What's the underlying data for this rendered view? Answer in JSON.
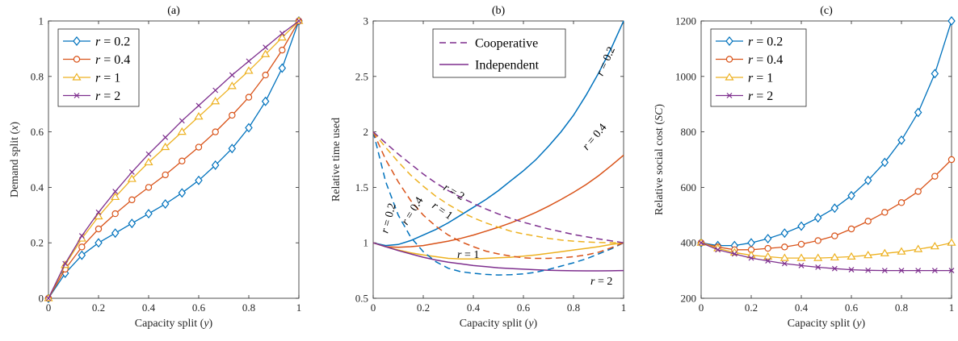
{
  "chart_data": [
    {
      "type": "line",
      "title": "(a)",
      "xlabel": "Capacity split (y)",
      "ylabel": "Demand split (x)",
      "xlim": [
        0,
        1
      ],
      "ylim": [
        0,
        1
      ],
      "xticks": [
        "0",
        "0.2",
        "0.4",
        "0.6",
        "0.8",
        "1"
      ],
      "yticks": [
        "0",
        "0.2",
        "0.4",
        "0.6",
        "0.8",
        "1"
      ],
      "grid": false,
      "legend": "top-left",
      "x": [
        0,
        0.0667,
        0.1333,
        0.2,
        0.2667,
        0.3333,
        0.4,
        0.4667,
        0.5333,
        0.6,
        0.6667,
        0.7333,
        0.8,
        0.8667,
        0.9333,
        1
      ],
      "series": [
        {
          "name": "r = 0.2",
          "color": "#0072BD",
          "marker": "diamond",
          "values": [
            0,
            0.09,
            0.155,
            0.2,
            0.235,
            0.27,
            0.305,
            0.34,
            0.38,
            0.425,
            0.48,
            0.54,
            0.615,
            0.71,
            0.83,
            1
          ]
        },
        {
          "name": "r = 0.4",
          "color": "#D95319",
          "marker": "circle",
          "values": [
            0,
            0.105,
            0.185,
            0.25,
            0.305,
            0.355,
            0.4,
            0.445,
            0.495,
            0.545,
            0.6,
            0.66,
            0.725,
            0.805,
            0.895,
            1
          ]
        },
        {
          "name": "r = 1",
          "color": "#EDB120",
          "marker": "triangle",
          "values": [
            0,
            0.12,
            0.215,
            0.295,
            0.365,
            0.43,
            0.49,
            0.545,
            0.6,
            0.655,
            0.71,
            0.765,
            0.82,
            0.88,
            0.94,
            1
          ]
        },
        {
          "name": "r = 2",
          "color": "#7E2F8E",
          "marker": "x",
          "values": [
            0,
            0.125,
            0.225,
            0.31,
            0.385,
            0.455,
            0.52,
            0.58,
            0.64,
            0.695,
            0.75,
            0.805,
            0.855,
            0.905,
            0.955,
            1
          ]
        }
      ]
    },
    {
      "type": "line",
      "title": "(b)",
      "xlabel": "Capacity split (y)",
      "ylabel": "Relative time used",
      "xlim": [
        0,
        1
      ],
      "ylim": [
        0.5,
        3
      ],
      "xticks": [
        "0",
        "0.2",
        "0.4",
        "0.6",
        "0.8",
        "1"
      ],
      "yticks": [
        "0.5",
        "1",
        "1.5",
        "2",
        "2.5",
        "3"
      ],
      "grid": false,
      "legend": "top-center",
      "legend_entries": [
        {
          "name": "Cooperative",
          "style": "dashed",
          "color": "#7E2F8E"
        },
        {
          "name": "Independent",
          "style": "solid",
          "color": "#7E2F8E"
        }
      ],
      "x": [
        0,
        0.05,
        0.1,
        0.15,
        0.2,
        0.25,
        0.3,
        0.35,
        0.4,
        0.45,
        0.5,
        0.55,
        0.6,
        0.65,
        0.7,
        0.75,
        0.8,
        0.85,
        0.9,
        0.95,
        1
      ],
      "series": [
        {
          "name": "r = 0.2 Independent",
          "color": "#0072BD",
          "style": "solid",
          "values": [
            1,
            0.975,
            0.985,
            1.02,
            1.07,
            1.12,
            1.18,
            1.25,
            1.32,
            1.39,
            1.47,
            1.56,
            1.65,
            1.75,
            1.87,
            2.0,
            2.15,
            2.33,
            2.53,
            2.75,
            3.0
          ]
        },
        {
          "name": "r = 0.4 Independent",
          "color": "#D95319",
          "style": "solid",
          "values": [
            1,
            0.965,
            0.96,
            0.965,
            0.975,
            0.995,
            1.015,
            1.04,
            1.07,
            1.105,
            1.14,
            1.18,
            1.225,
            1.275,
            1.33,
            1.39,
            1.455,
            1.525,
            1.605,
            1.695,
            1.79
          ]
        },
        {
          "name": "r = 1 Independent",
          "color": "#EDB120",
          "style": "solid",
          "values": [
            1,
            0.965,
            0.935,
            0.91,
            0.89,
            0.875,
            0.86,
            0.855,
            0.855,
            0.86,
            0.865,
            0.87,
            0.88,
            0.89,
            0.905,
            0.92,
            0.935,
            0.95,
            0.965,
            0.985,
            1.0
          ]
        },
        {
          "name": "r = 2 Independent",
          "color": "#7E2F8E",
          "style": "solid",
          "values": [
            1,
            0.965,
            0.93,
            0.9,
            0.87,
            0.845,
            0.825,
            0.81,
            0.795,
            0.785,
            0.775,
            0.768,
            0.762,
            0.757,
            0.753,
            0.75,
            0.748,
            0.747,
            0.747,
            0.748,
            0.75
          ]
        },
        {
          "name": "r = 0.2 Cooperative",
          "color": "#0072BD",
          "style": "dashed",
          "values": [
            2,
            1.55,
            1.25,
            1.05,
            0.92,
            0.83,
            0.77,
            0.74,
            0.725,
            0.715,
            0.71,
            0.712,
            0.72,
            0.735,
            0.76,
            0.79,
            0.82,
            0.855,
            0.9,
            0.945,
            1.0
          ]
        },
        {
          "name": "r = 0.4 Cooperative",
          "color": "#D95319",
          "style": "dashed",
          "values": [
            2,
            1.75,
            1.55,
            1.38,
            1.25,
            1.15,
            1.07,
            1.01,
            0.965,
            0.925,
            0.9,
            0.88,
            0.865,
            0.86,
            0.86,
            0.865,
            0.875,
            0.89,
            0.915,
            0.955,
            1.0
          ]
        },
        {
          "name": "r = 1 Cooperative",
          "color": "#EDB120",
          "style": "dashed",
          "values": [
            2,
            1.86,
            1.73,
            1.61,
            1.51,
            1.42,
            1.345,
            1.28,
            1.225,
            1.18,
            1.14,
            1.105,
            1.08,
            1.06,
            1.04,
            1.025,
            1.015,
            1.008,
            1.003,
            1.001,
            1.0
          ]
        },
        {
          "name": "r = 2 Cooperative",
          "color": "#7E2F8E",
          "style": "dashed",
          "values": [
            2,
            1.9,
            1.8,
            1.71,
            1.62,
            1.54,
            1.47,
            1.41,
            1.355,
            1.305,
            1.26,
            1.22,
            1.185,
            1.155,
            1.125,
            1.1,
            1.075,
            1.055,
            1.035,
            1.018,
            1.0
          ]
        }
      ],
      "annotations": [
        "r = 0.2",
        "r = 0.4",
        "r = 2",
        "r = 1",
        "r = 0.2",
        "r = 0.4",
        "r = 1",
        "r = 2"
      ]
    },
    {
      "type": "line",
      "title": "(c)",
      "xlabel": "Capacity split (y)",
      "ylabel": "Relative social cost (SC)",
      "xlim": [
        0,
        1
      ],
      "ylim": [
        200,
        1200
      ],
      "xticks": [
        "0",
        "0.2",
        "0.4",
        "0.6",
        "0.8",
        "1"
      ],
      "yticks": [
        "200",
        "400",
        "600",
        "800",
        "1000",
        "1200"
      ],
      "grid": false,
      "legend": "top-left",
      "x": [
        0,
        0.0667,
        0.1333,
        0.2,
        0.2667,
        0.3333,
        0.4,
        0.4667,
        0.5333,
        0.6,
        0.6667,
        0.7333,
        0.8,
        0.8667,
        0.9333,
        1
      ],
      "series": [
        {
          "name": "r = 0.2",
          "color": "#0072BD",
          "marker": "diamond",
          "values": [
            400,
            390,
            390,
            400,
            415,
            435,
            460,
            490,
            525,
            570,
            625,
            690,
            770,
            870,
            1010,
            1200
          ]
        },
        {
          "name": "r = 0.4",
          "color": "#D95319",
          "marker": "circle",
          "values": [
            400,
            385,
            375,
            375,
            380,
            385,
            395,
            408,
            425,
            450,
            478,
            510,
            545,
            585,
            640,
            700
          ]
        },
        {
          "name": "r = 1",
          "color": "#EDB120",
          "marker": "triangle",
          "values": [
            400,
            380,
            365,
            355,
            350,
            345,
            345,
            345,
            347,
            350,
            355,
            362,
            368,
            377,
            387,
            400
          ]
        },
        {
          "name": "r = 2",
          "color": "#7E2F8E",
          "marker": "x",
          "values": [
            400,
            375,
            360,
            345,
            335,
            325,
            318,
            312,
            307,
            303,
            301,
            300,
            300,
            300,
            300,
            300
          ]
        }
      ]
    }
  ]
}
